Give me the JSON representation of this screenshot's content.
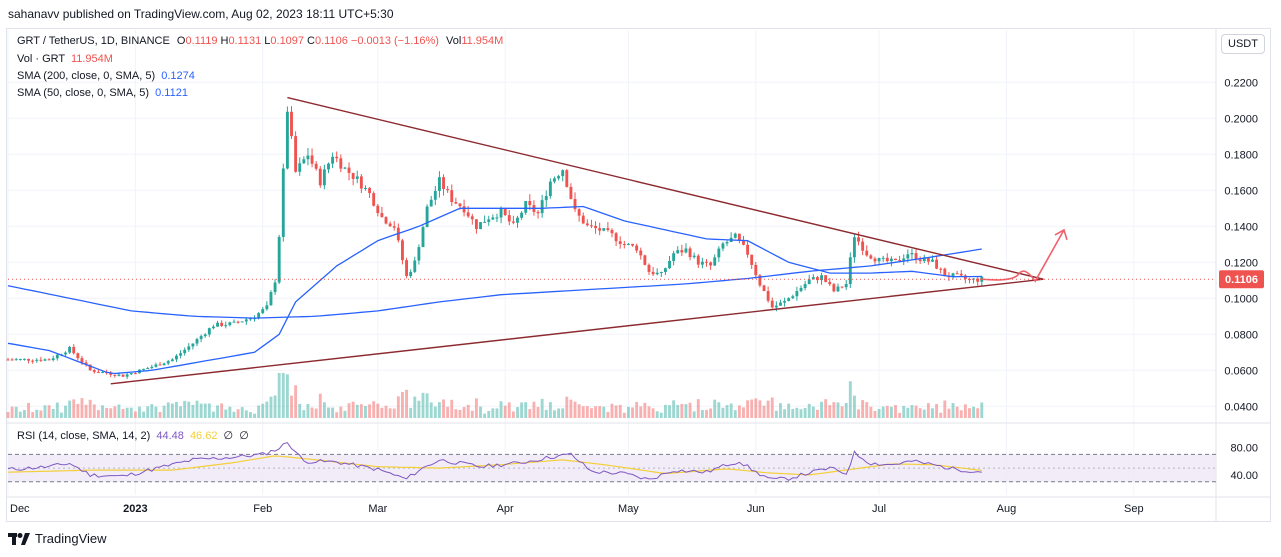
{
  "header": {
    "published_line": "sahanavv published on TradingView.com, Aug 02, 2023 18:11 UTC+5:30"
  },
  "legend": {
    "symbol": "GRT / TetherUS, 1D, BINANCE",
    "ohlc": [
      {
        "k": "O",
        "v": "0.1119"
      },
      {
        "k": "H",
        "v": "0.1131"
      },
      {
        "k": "L",
        "v": "0.1097"
      },
      {
        "k": "C",
        "v": "0.1106"
      }
    ],
    "change": "−0.0013 (−1.16%)",
    "vol_label": "Vol",
    "vol_value": "11.954M",
    "vol_grt_label": "Vol · GRT",
    "vol_grt_value": "11.954M",
    "sma200_label": "SMA (200, close, 0, SMA, 5)",
    "sma200_value": "0.1274",
    "sma50_label": "SMA (50, close, 0, SMA, 5)",
    "sma50_value": "0.1121",
    "rsi_label": "RSI (14, close, SMA, 14, 2)",
    "rsi_value": "44.48",
    "rsi_ma_value": "46.62",
    "rsi_extra1": "∅",
    "rsi_extra2": "∅"
  },
  "currency_button": "USDT",
  "brand": "TradingView",
  "colors": {
    "up": "#26a69a",
    "down": "#ef5350",
    "sma": "#2962ff",
    "triangle": "#8d2a2f",
    "arrow": "#f0606a",
    "rsi_line": "#7e57c2",
    "rsi_ma": "#f4cf3a",
    "rsi_band": "#ede7f6"
  },
  "chart_data": {
    "type": "candlestick",
    "symbol": "GRT/USDT",
    "timeframe": "1D",
    "y_ticks": [
      "0.2200",
      "0.2000",
      "0.1800",
      "0.1600",
      "0.1400",
      "0.1200",
      "0.1000",
      "0.0800",
      "0.0600",
      "0.0400"
    ],
    "y_tick_values": [
      0.22,
      0.2,
      0.18,
      0.16,
      0.14,
      0.12,
      0.1,
      0.08,
      0.06,
      0.04
    ],
    "ylim": [
      0.0335,
      0.2335
    ],
    "last_price_label": "0.1106",
    "last_price": 0.1106,
    "x_ticks": [
      "Dec",
      "2023",
      "Feb",
      "Mar",
      "Apr",
      "May",
      "Jun",
      "Jul",
      "Aug",
      "Sep"
    ],
    "x_tick_days": [
      0,
      31,
      62,
      90,
      121,
      151,
      182,
      212,
      243,
      274
    ],
    "xlim": [
      0,
      294
    ],
    "close_path": [
      [
        0,
        0.066
      ],
      [
        10,
        0.066
      ],
      [
        15,
        0.072
      ],
      [
        20,
        0.06
      ],
      [
        28,
        0.057
      ],
      [
        35,
        0.062
      ],
      [
        40,
        0.066
      ],
      [
        45,
        0.075
      ],
      [
        50,
        0.085
      ],
      [
        55,
        0.086
      ],
      [
        60,
        0.09
      ],
      [
        63,
        0.095
      ],
      [
        65,
        0.11
      ],
      [
        66,
        0.135
      ],
      [
        68,
        0.205
      ],
      [
        70,
        0.17
      ],
      [
        73,
        0.18
      ],
      [
        76,
        0.165
      ],
      [
        79,
        0.18
      ],
      [
        82,
        0.172
      ],
      [
        85,
        0.166
      ],
      [
        88,
        0.158
      ],
      [
        91,
        0.145
      ],
      [
        94,
        0.14
      ],
      [
        97,
        0.112
      ],
      [
        99,
        0.12
      ],
      [
        102,
        0.15
      ],
      [
        105,
        0.165
      ],
      [
        108,
        0.155
      ],
      [
        111,
        0.15
      ],
      [
        114,
        0.14
      ],
      [
        117,
        0.145
      ],
      [
        120,
        0.148
      ],
      [
        123,
        0.14
      ],
      [
        126,
        0.152
      ],
      [
        129,
        0.147
      ],
      [
        132,
        0.165
      ],
      [
        135,
        0.172
      ],
      [
        138,
        0.148
      ],
      [
        141,
        0.14
      ],
      [
        144,
        0.138
      ],
      [
        147,
        0.135
      ],
      [
        150,
        0.13
      ],
      [
        153,
        0.128
      ],
      [
        156,
        0.115
      ],
      [
        159,
        0.113
      ],
      [
        162,
        0.125
      ],
      [
        165,
        0.127
      ],
      [
        168,
        0.12
      ],
      [
        171,
        0.118
      ],
      [
        174,
        0.13
      ],
      [
        177,
        0.134
      ],
      [
        180,
        0.125
      ],
      [
        183,
        0.108
      ],
      [
        186,
        0.095
      ],
      [
        189,
        0.098
      ],
      [
        192,
        0.104
      ],
      [
        195,
        0.11
      ],
      [
        198,
        0.112
      ],
      [
        201,
        0.104
      ],
      [
        204,
        0.108
      ],
      [
        206,
        0.135
      ],
      [
        209,
        0.125
      ],
      [
        212,
        0.121
      ],
      [
        216,
        0.12
      ],
      [
        219,
        0.125
      ],
      [
        222,
        0.122
      ],
      [
        225,
        0.12
      ],
      [
        228,
        0.113
      ],
      [
        231,
        0.112
      ],
      [
        234,
        0.11
      ],
      [
        237,
        0.1106
      ]
    ],
    "sma50_path": [
      [
        0,
        0.075
      ],
      [
        10,
        0.071
      ],
      [
        25,
        0.058
      ],
      [
        35,
        0.06
      ],
      [
        50,
        0.066
      ],
      [
        60,
        0.07
      ],
      [
        66,
        0.08
      ],
      [
        70,
        0.098
      ],
      [
        80,
        0.118
      ],
      [
        90,
        0.132
      ],
      [
        100,
        0.14
      ],
      [
        110,
        0.15
      ],
      [
        120,
        0.15
      ],
      [
        130,
        0.15
      ],
      [
        140,
        0.151
      ],
      [
        150,
        0.143
      ],
      [
        160,
        0.138
      ],
      [
        170,
        0.133
      ],
      [
        180,
        0.132
      ],
      [
        190,
        0.12
      ],
      [
        200,
        0.114
      ],
      [
        210,
        0.114
      ],
      [
        220,
        0.115
      ],
      [
        230,
        0.112
      ],
      [
        237,
        0.1121
      ]
    ],
    "sma200_path": [
      [
        0,
        0.107
      ],
      [
        15,
        0.1
      ],
      [
        30,
        0.093
      ],
      [
        45,
        0.09
      ],
      [
        60,
        0.089
      ],
      [
        75,
        0.09
      ],
      [
        90,
        0.093
      ],
      [
        105,
        0.098
      ],
      [
        120,
        0.102
      ],
      [
        135,
        0.104
      ],
      [
        150,
        0.106
      ],
      [
        165,
        0.108
      ],
      [
        180,
        0.111
      ],
      [
        195,
        0.115
      ],
      [
        210,
        0.118
      ],
      [
        225,
        0.123
      ],
      [
        237,
        0.1274
      ]
    ],
    "triangle_upper": [
      [
        68,
        0.2115
      ],
      [
        252,
        0.1106
      ]
    ],
    "triangle_lower": [
      [
        25,
        0.0525
      ],
      [
        252,
        0.1106
      ]
    ],
    "projection": [
      [
        237,
        0.1106
      ],
      [
        246,
        0.1135
      ],
      [
        250,
        0.1095
      ],
      [
        257,
        0.138
      ]
    ],
    "rsi": {
      "ticks": [
        "80.00",
        "40.00"
      ],
      "tick_values": [
        80,
        40
      ],
      "band": [
        70,
        30
      ],
      "ylim": [
        18,
        91
      ],
      "rsi_path": [
        [
          0,
          48
        ],
        [
          10,
          52
        ],
        [
          15,
          57
        ],
        [
          20,
          40
        ],
        [
          28,
          38
        ],
        [
          35,
          48
        ],
        [
          45,
          62
        ],
        [
          55,
          66
        ],
        [
          62,
          70
        ],
        [
          66,
          79
        ],
        [
          68,
          88
        ],
        [
          72,
          60
        ],
        [
          80,
          59
        ],
        [
          90,
          48
        ],
        [
          97,
          34
        ],
        [
          100,
          47
        ],
        [
          105,
          62
        ],
        [
          115,
          52
        ],
        [
          125,
          58
        ],
        [
          132,
          66
        ],
        [
          137,
          70
        ],
        [
          142,
          45
        ],
        [
          150,
          42
        ],
        [
          156,
          33
        ],
        [
          162,
          47
        ],
        [
          170,
          44
        ],
        [
          175,
          55
        ],
        [
          178,
          60
        ],
        [
          182,
          44
        ],
        [
          186,
          33
        ],
        [
          190,
          35
        ],
        [
          195,
          43
        ],
        [
          200,
          50
        ],
        [
          204,
          42
        ],
        [
          206,
          72
        ],
        [
          210,
          57
        ],
        [
          215,
          55
        ],
        [
          220,
          60
        ],
        [
          225,
          55
        ],
        [
          230,
          49
        ],
        [
          237,
          44.48
        ]
      ],
      "rsi_ma_path": [
        [
          0,
          44
        ],
        [
          20,
          47
        ],
        [
          40,
          47
        ],
        [
          55,
          58
        ],
        [
          65,
          68
        ],
        [
          75,
          62
        ],
        [
          90,
          52
        ],
        [
          105,
          50
        ],
        [
          120,
          55
        ],
        [
          135,
          62
        ],
        [
          145,
          55
        ],
        [
          160,
          42
        ],
        [
          175,
          49
        ],
        [
          185,
          43
        ],
        [
          195,
          40
        ],
        [
          205,
          48
        ],
        [
          215,
          56
        ],
        [
          225,
          55
        ],
        [
          237,
          46.62
        ]
      ]
    }
  }
}
